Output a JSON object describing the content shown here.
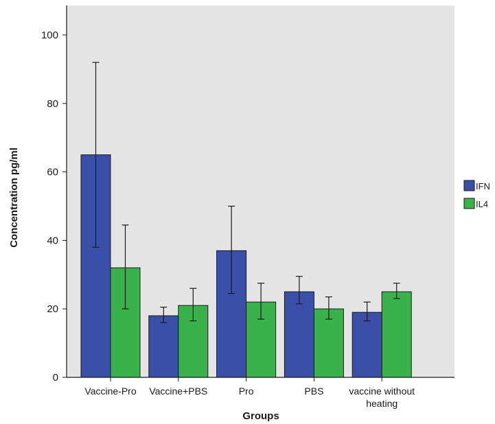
{
  "chart_data": {
    "type": "bar",
    "title": "",
    "xlabel": "Groups",
    "ylabel": "Concentration pg/ml",
    "ylim": [
      0,
      110
    ],
    "yticks": [
      "0",
      "20",
      "40",
      "60",
      "80",
      "100"
    ],
    "categories": [
      [
        "Vaccine-Pro"
      ],
      [
        "Vaccine+PBS"
      ],
      [
        "Pro"
      ],
      [
        "PBS"
      ],
      [
        "vaccine without",
        "heating"
      ]
    ],
    "series": [
      {
        "name": "IFN",
        "color": "#3a4fa8",
        "values": [
          65,
          18,
          37,
          25,
          19
        ],
        "error_low": [
          38,
          16,
          24.5,
          21.5,
          16.5
        ],
        "error_high": [
          92,
          20.5,
          50,
          29.5,
          22
        ]
      },
      {
        "name": "IL4",
        "color": "#39b24a",
        "values": [
          32,
          21,
          22,
          20,
          25
        ],
        "error_low": [
          20,
          16.5,
          17,
          17,
          23
        ],
        "error_high": [
          44.5,
          26,
          27.5,
          23.5,
          27.5
        ]
      }
    ],
    "background": "#e5e5e5",
    "grid": false,
    "legend_position": "right"
  }
}
